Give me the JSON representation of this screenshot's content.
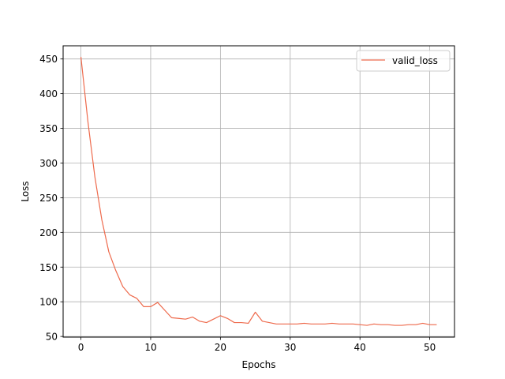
{
  "chart_data": {
    "type": "line",
    "title": "",
    "xlabel": "Epochs",
    "ylabel": "Loss",
    "xlim": [
      -2.55,
      53.55
    ],
    "ylim": [
      49,
      469
    ],
    "xticks": [
      0,
      10,
      20,
      30,
      40,
      50
    ],
    "yticks": [
      50,
      100,
      150,
      200,
      250,
      300,
      350,
      400,
      450
    ],
    "grid": true,
    "legend_position": "top-right",
    "series": [
      {
        "name": "valid_loss",
        "color": "#ee6a4c",
        "x": [
          0,
          1,
          2,
          3,
          4,
          5,
          6,
          7,
          8,
          9,
          10,
          11,
          12,
          13,
          14,
          15,
          16,
          17,
          18,
          19,
          20,
          21,
          22,
          23,
          24,
          25,
          26,
          27,
          28,
          29,
          30,
          31,
          32,
          33,
          34,
          35,
          36,
          37,
          38,
          39,
          40,
          41,
          42,
          43,
          44,
          45,
          46,
          47,
          48,
          49,
          50,
          51
        ],
        "y": [
          453,
          360,
          280,
          218,
          172,
          145,
          122,
          110,
          105,
          93,
          93,
          99,
          88,
          77,
          76,
          75,
          78,
          72,
          70,
          75,
          80,
          76,
          70,
          70,
          69,
          85,
          72,
          70,
          68,
          68,
          68,
          68,
          69,
          68,
          68,
          68,
          69,
          68,
          68,
          68,
          67,
          66,
          68,
          67,
          67,
          66,
          66,
          67,
          67,
          69,
          67,
          67
        ]
      }
    ]
  }
}
